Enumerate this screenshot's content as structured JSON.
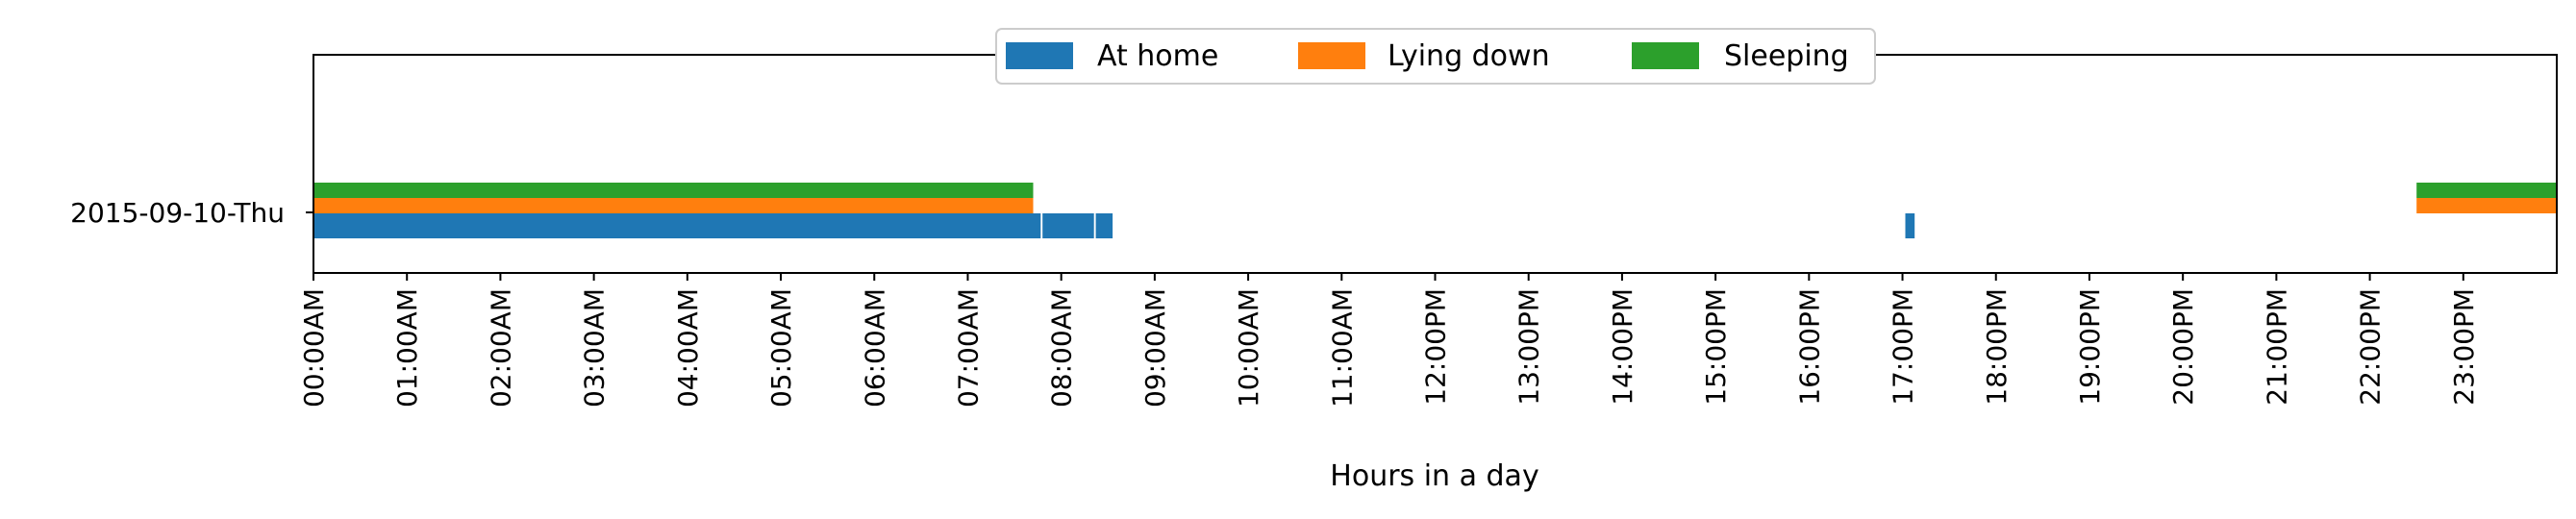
{
  "chart_data": {
    "type": "bar",
    "orientation": "horizontal-timeline",
    "title": "",
    "xlabel": "Hours in a day",
    "ylabel": "",
    "xlim": [
      0,
      24
    ],
    "x_tick_values": [
      0,
      1,
      2,
      3,
      4,
      5,
      6,
      7,
      8,
      9,
      10,
      11,
      12,
      13,
      14,
      15,
      16,
      17,
      18,
      19,
      20,
      21,
      22,
      23
    ],
    "x_tick_labels": [
      "00:00AM",
      "01:00AM",
      "02:00AM",
      "03:00AM",
      "04:00AM",
      "05:00AM",
      "06:00AM",
      "07:00AM",
      "08:00AM",
      "09:00AM",
      "10:00AM",
      "11:00AM",
      "12:00PM",
      "13:00PM",
      "14:00PM",
      "15:00PM",
      "16:00PM",
      "17:00PM",
      "18:00PM",
      "19:00PM",
      "20:00PM",
      "21:00PM",
      "22:00PM",
      "23:00PM"
    ],
    "categories": [
      "2015-09-10-Thu"
    ],
    "legend_position": "top-center",
    "grid": false,
    "series": [
      {
        "name": "At home",
        "color": "#1f77b4",
        "intervals": [
          [
            0.0,
            7.78
          ],
          [
            7.8,
            8.35
          ],
          [
            8.37,
            8.55
          ],
          [
            17.03,
            17.13
          ]
        ]
      },
      {
        "name": "Lying down",
        "color": "#ff7f0e",
        "intervals": [
          [
            0.0,
            7.7
          ],
          [
            22.5,
            24.0
          ]
        ]
      },
      {
        "name": "Sleeping",
        "color": "#2ca02c",
        "intervals": [
          [
            0.0,
            7.7
          ],
          [
            22.5,
            24.0
          ]
        ]
      }
    ]
  }
}
